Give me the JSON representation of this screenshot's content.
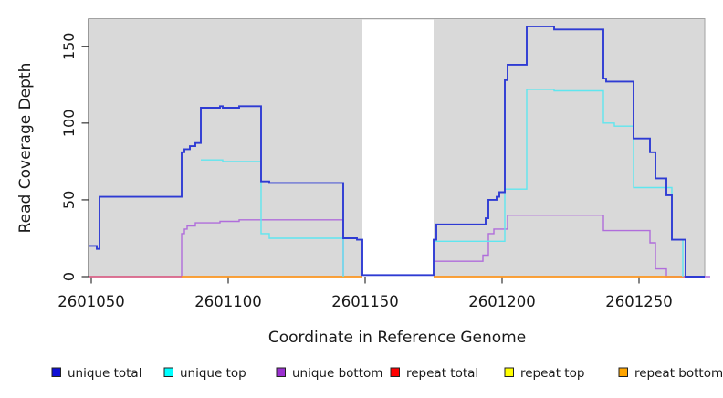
{
  "chart_data": {
    "type": "line",
    "title": "",
    "xlabel": "Coordinate in Reference Genome",
    "ylabel": "Read Coverage Depth",
    "xlim": [
      2601049,
      2601274
    ],
    "ylim": [
      0,
      168
    ],
    "x_ticks": [
      2601050,
      2601100,
      2601150,
      2601200,
      2601250
    ],
    "x_tick_labels": [
      "2601050",
      "2601100",
      "2601150",
      "2601200",
      "2601250"
    ],
    "y_ticks": [
      0,
      50,
      100,
      150
    ],
    "y_tick_labels": [
      "0",
      "50",
      "100",
      "150"
    ],
    "grid": "off",
    "panel_bg": "#d9d9d9",
    "panel_border": "#a2a2a2",
    "axis_color": "#333333",
    "text_color": "#1a1a1a",
    "masked_gap_region": [
      2601149,
      2601175
    ],
    "legend_position": "bottom",
    "legend": [
      {
        "label": "unique total",
        "fill": "#0f0fd6"
      },
      {
        "label": "unique top",
        "fill": "#00ffff"
      },
      {
        "label": "unique bottom",
        "fill": "#9b30d0"
      },
      {
        "label": "repeat total",
        "fill": "#ff0000"
      },
      {
        "label": "repeat top",
        "fill": "#ffff00"
      },
      {
        "label": "repeat bottom",
        "fill": "#ffa500"
      }
    ],
    "series": [
      {
        "name": "repeat top",
        "color": "#f2e11f",
        "width": 1.2,
        "segments": [
          [
            [
              2601083,
              0
            ],
            [
              2601149,
              0
            ]
          ],
          [
            [
              2601175,
              0
            ],
            [
              2601266,
              0
            ]
          ]
        ]
      },
      {
        "name": "unique bottom",
        "color": "#b06ddb",
        "width": 1.4,
        "segments": [
          [
            [
              2601049,
              0
            ],
            [
              2601083,
              28
            ],
            [
              2601084,
              31
            ],
            [
              2601085,
              33
            ],
            [
              2601088,
              35
            ],
            [
              2601097,
              36
            ],
            [
              2601104,
              37
            ],
            [
              2601142,
              0
            ]
          ],
          [
            [
              2601175,
              10
            ],
            [
              2601193,
              14
            ],
            [
              2601195,
              28
            ],
            [
              2601197,
              31
            ],
            [
              2601202,
              40
            ],
            [
              2601237,
              30
            ],
            [
              2601254,
              22
            ],
            [
              2601256,
              5
            ],
            [
              2601260,
              0
            ],
            [
              2601276,
              0
            ]
          ]
        ]
      },
      {
        "name": "repeat total",
        "color": "#df6079",
        "width": 1.4,
        "segments": [
          [
            [
              2601049,
              0
            ],
            [
              2601149,
              0
            ]
          ],
          [
            [
              2601175,
              0
            ],
            [
              2601267,
              0
            ]
          ]
        ]
      },
      {
        "name": "repeat bottom",
        "color": "#ff9e1b",
        "width": 1.6,
        "segments": [
          [
            [
              2601083,
              0
            ],
            [
              2601149,
              0
            ]
          ],
          [
            [
              2601175,
              0
            ],
            [
              2601266,
              0
            ]
          ]
        ]
      },
      {
        "name": "unique top",
        "color": "#5fe6ef",
        "width": 1.4,
        "segments": [
          [
            [
              2601090,
              76
            ],
            [
              2601098,
              75
            ],
            [
              2601112,
              28
            ],
            [
              2601115,
              25
            ],
            [
              2601142,
              0
            ]
          ],
          [
            [
              2601175,
              23
            ],
            [
              2601201,
              57
            ],
            [
              2601209,
              122
            ],
            [
              2601219,
              121
            ],
            [
              2601237,
              100
            ],
            [
              2601241,
              98
            ],
            [
              2601248,
              58
            ],
            [
              2601262,
              24
            ],
            [
              2601266,
              0
            ]
          ]
        ]
      },
      {
        "name": "unique total",
        "color": "#2e3bd3",
        "width": 1.9,
        "segments": [
          [
            [
              2601049,
              20
            ],
            [
              2601052,
              18
            ],
            [
              2601053,
              52
            ],
            [
              2601083,
              81
            ],
            [
              2601084,
              83
            ],
            [
              2601086,
              85
            ],
            [
              2601088,
              87
            ],
            [
              2601090,
              110
            ],
            [
              2601097,
              111
            ],
            [
              2601098,
              110
            ],
            [
              2601104,
              111
            ],
            [
              2601112,
              62
            ],
            [
              2601115,
              61
            ],
            [
              2601142,
              25
            ],
            [
              2601147,
              24
            ],
            [
              2601149,
              1
            ],
            [
              2601175,
              24
            ],
            [
              2601176,
              34
            ],
            [
              2601194,
              38
            ],
            [
              2601195,
              50
            ],
            [
              2601198,
              52
            ],
            [
              2601199,
              55
            ],
            [
              2601201,
              128
            ],
            [
              2601202,
              138
            ],
            [
              2601209,
              163
            ],
            [
              2601219,
              161
            ],
            [
              2601237,
              129
            ],
            [
              2601238,
              127
            ],
            [
              2601248,
              90
            ],
            [
              2601254,
              81
            ],
            [
              2601256,
              64
            ],
            [
              2601260,
              53
            ],
            [
              2601262,
              24
            ],
            [
              2601267,
              0
            ],
            [
              2601274,
              0
            ]
          ]
        ]
      }
    ]
  }
}
